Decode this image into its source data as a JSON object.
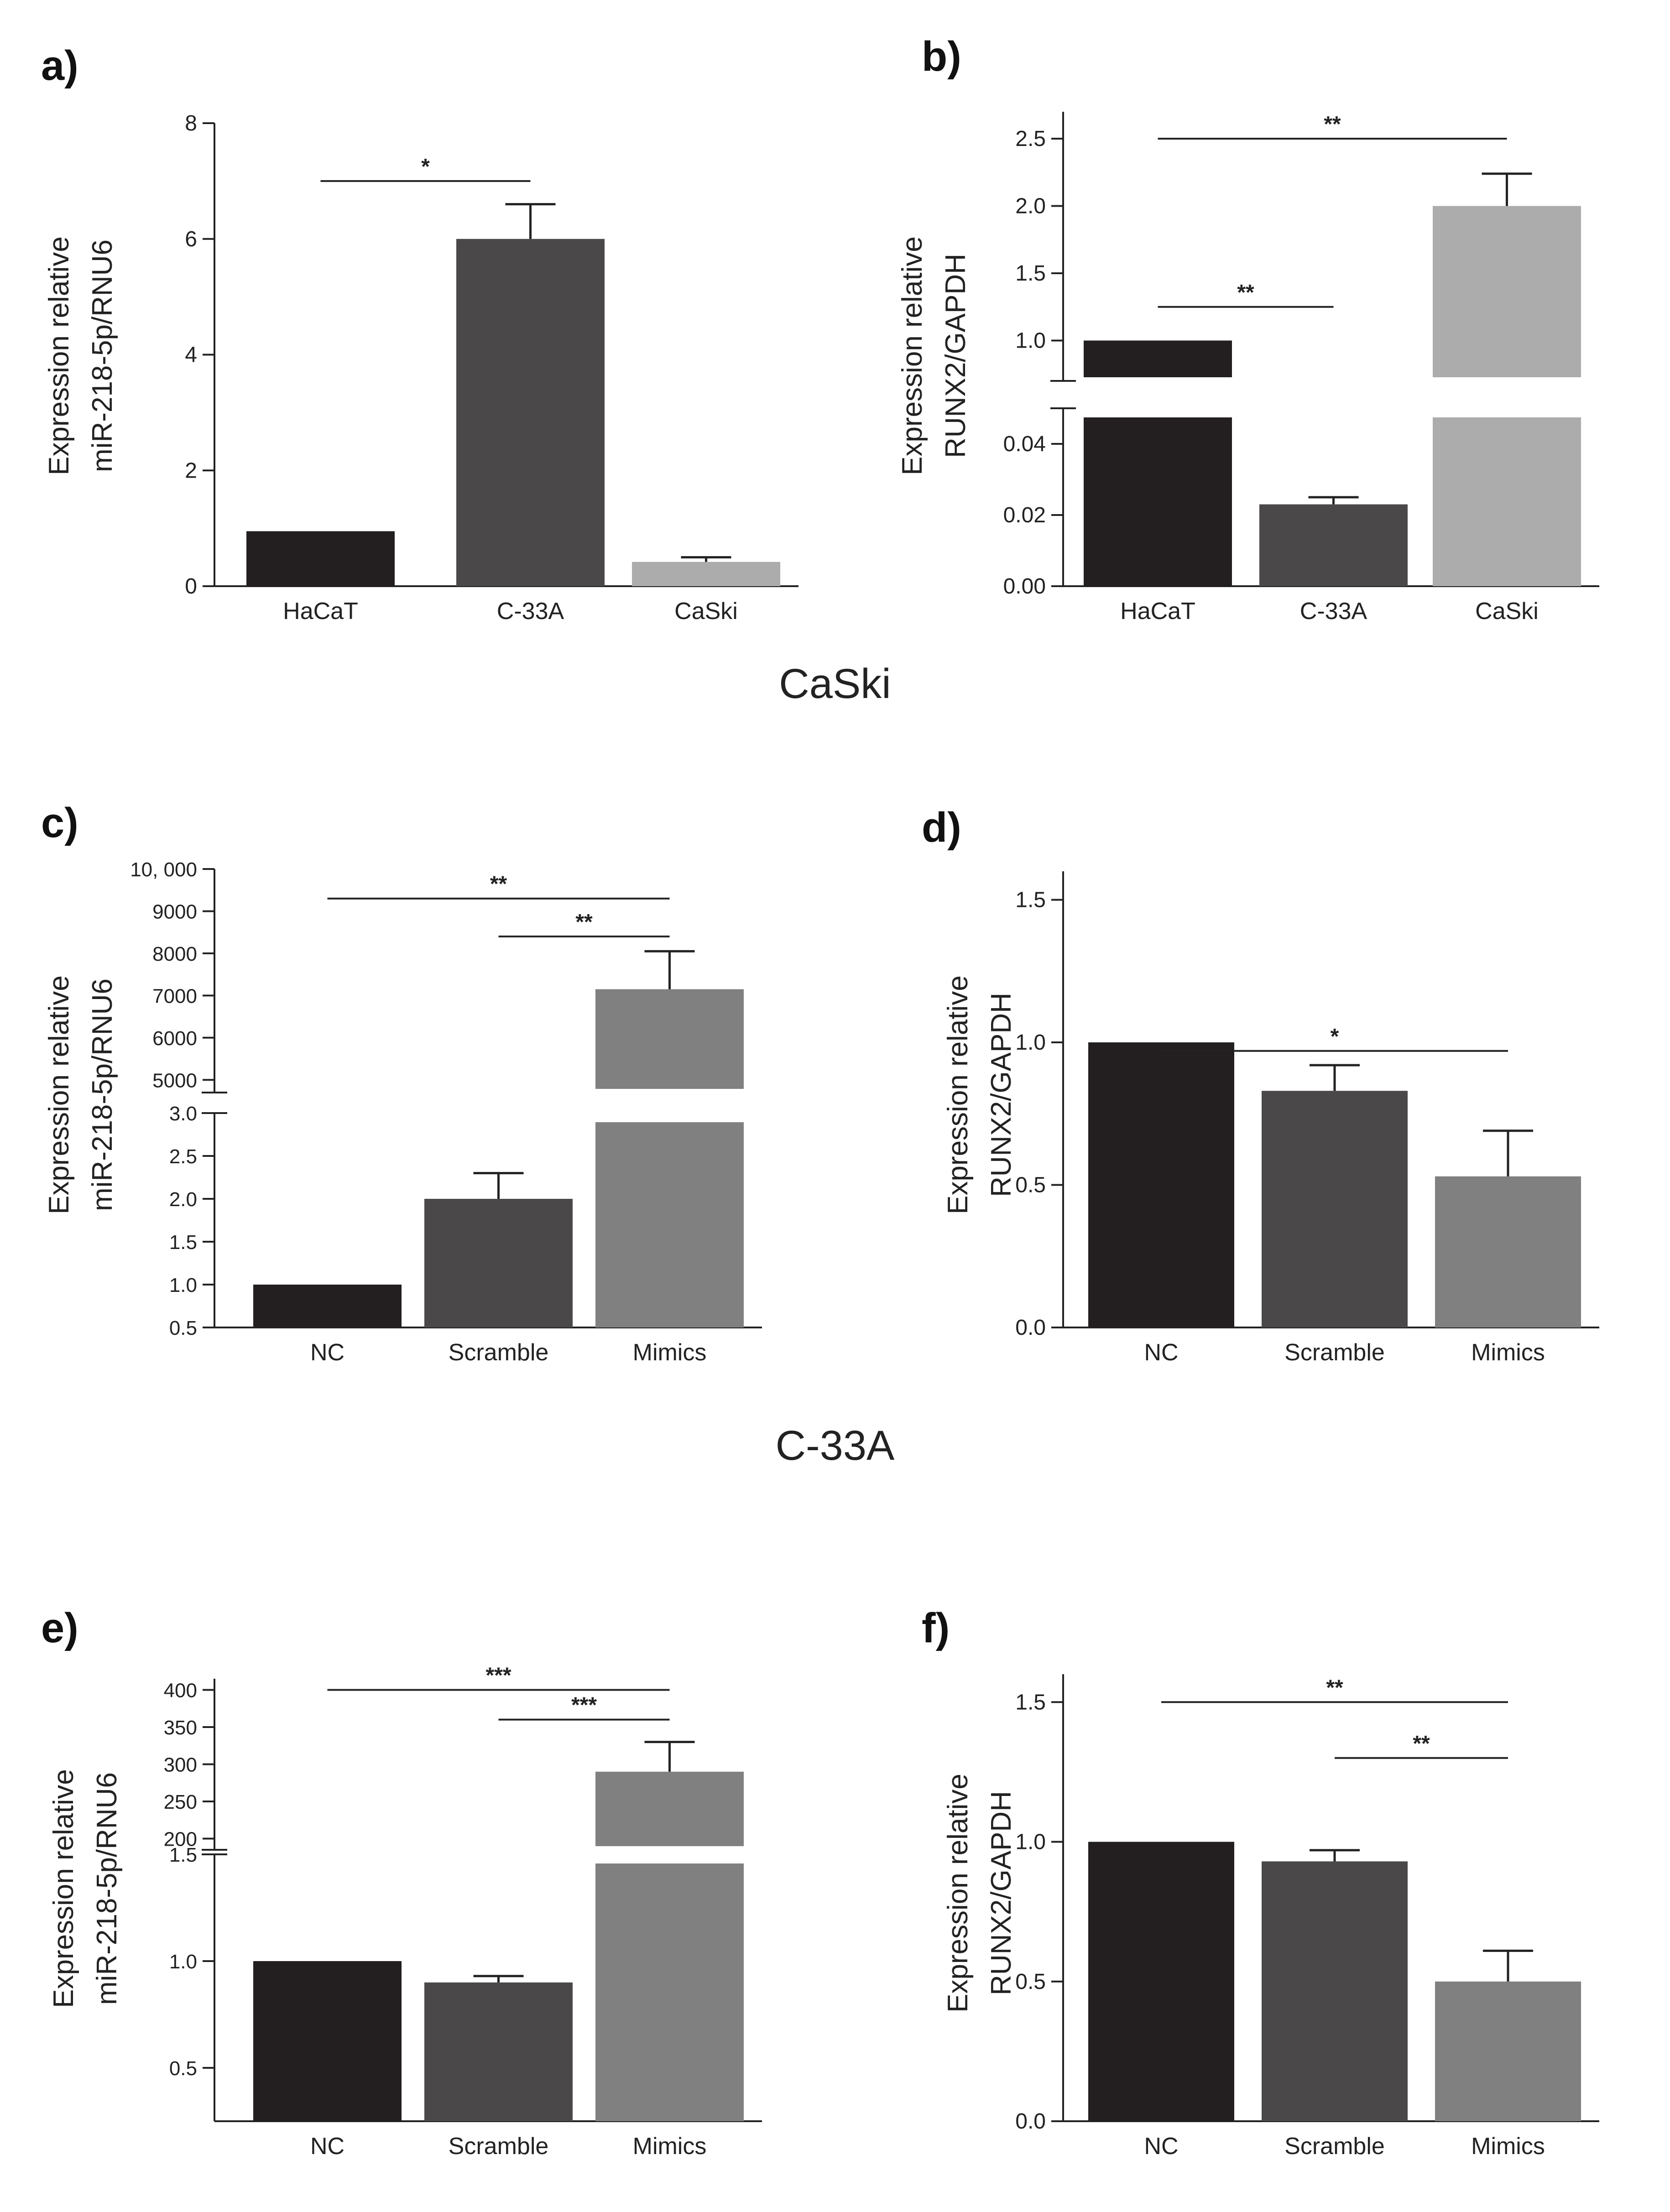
{
  "section_labels": {
    "caski": "CaSki",
    "c33a": "C-33A"
  },
  "chart_data": [
    {
      "panel": "a)",
      "type": "bar",
      "ylabel_lines": [
        "Expression relative",
        "miR-218-5p/RNU6"
      ],
      "categories": [
        "HaCaT",
        "C-33A",
        "CaSki"
      ],
      "values": [
        0.95,
        6.0,
        0.42
      ],
      "errors": [
        0,
        0.6,
        0.08
      ],
      "colors": [
        "#231f20",
        "#4a4849",
        "#acacac"
      ],
      "ylim": [
        0,
        8
      ],
      "ticks": [
        {
          "v": 0,
          "label": "0"
        },
        {
          "v": 2,
          "label": "2"
        },
        {
          "v": 4,
          "label": "4"
        },
        {
          "v": 6,
          "label": "6"
        },
        {
          "v": 8,
          "label": "8"
        }
      ],
      "significance": [
        {
          "from": 0,
          "to": 1,
          "label": "*",
          "y": 7.0
        }
      ]
    },
    {
      "panel": "b)",
      "type": "bar",
      "ylabel_lines": [
        "Expression relative",
        "RUNX2/GAPDH"
      ],
      "categories": [
        "HaCaT",
        "C-33A",
        "CaSki"
      ],
      "values": [
        1.0,
        0.023,
        2.0
      ],
      "errors": [
        0,
        0.002,
        0.24
      ],
      "colors": [
        "#231f20",
        "#4a4849",
        "#acacac"
      ],
      "broken_axis": {
        "lower": [
          0,
          0.05
        ],
        "upper": [
          0.7,
          2.7
        ]
      },
      "ticks_lower": [
        {
          "v": 0,
          "label": "0.00"
        },
        {
          "v": 0.02,
          "label": "0.02"
        },
        {
          "v": 0.04,
          "label": "0.04"
        }
      ],
      "ticks_upper": [
        {
          "v": 1.0,
          "label": "1.0"
        },
        {
          "v": 1.5,
          "label": "1.5"
        },
        {
          "v": 2.0,
          "label": "2.0"
        },
        {
          "v": 2.5,
          "label": "2.5"
        }
      ],
      "significance": [
        {
          "from": 0,
          "to": 1,
          "label": "**",
          "y": 1.25
        },
        {
          "from": 0,
          "to": 2,
          "label": "**",
          "y": 2.5
        }
      ]
    },
    {
      "panel": "c)",
      "type": "bar",
      "ylabel_lines": [
        "Expression relative",
        "miR-218-5p/RNU6"
      ],
      "categories": [
        "NC",
        "Scramble",
        "Mimics"
      ],
      "values": [
        1.0,
        2.0,
        7150
      ],
      "errors": [
        0,
        0.3,
        900
      ],
      "colors": [
        "#231f20",
        "#4a4849",
        "#808080"
      ],
      "broken_axis": {
        "lower": [
          0.5,
          3.0
        ],
        "upper": [
          4700,
          10000
        ]
      },
      "ticks_lower": [
        {
          "v": 0.5,
          "label": "0.5"
        },
        {
          "v": 1.0,
          "label": "1.0"
        },
        {
          "v": 1.5,
          "label": "1.5"
        },
        {
          "v": 2.0,
          "label": "2.0"
        },
        {
          "v": 2.5,
          "label": "2.5"
        },
        {
          "v": 3.0,
          "label": "3.0"
        }
      ],
      "ticks_upper": [
        {
          "v": 5000,
          "label": "5000"
        },
        {
          "v": 6000,
          "label": "6000"
        },
        {
          "v": 7000,
          "label": "7000"
        },
        {
          "v": 8000,
          "label": "8000"
        },
        {
          "v": 9000,
          "label": "9000"
        },
        {
          "v": 10000,
          "label": "10, 000"
        }
      ],
      "significance": [
        {
          "from": 0,
          "to": 2,
          "label": "**",
          "y": 9300
        },
        {
          "from": 1,
          "to": 2,
          "label": "**",
          "y": 8400
        }
      ]
    },
    {
      "panel": "d)",
      "type": "bar",
      "ylabel_lines": [
        "Expression relative",
        "RUNX2/GAPDH"
      ],
      "categories": [
        "NC",
        "Scramble",
        "Mimics"
      ],
      "values": [
        1.0,
        0.83,
        0.53
      ],
      "errors": [
        0,
        0.09,
        0.16
      ],
      "colors": [
        "#231f20",
        "#4a4849",
        "#808080"
      ],
      "ylim": [
        0,
        1.6
      ],
      "ticks": [
        {
          "v": 0,
          "label": "0.0"
        },
        {
          "v": 0.5,
          "label": "0.5"
        },
        {
          "v": 1.0,
          "label": "1.0"
        },
        {
          "v": 1.5,
          "label": "1.5"
        }
      ],
      "significance": [
        {
          "from": 0,
          "to": 2,
          "label": "*",
          "y": 0.97
        }
      ]
    },
    {
      "panel": "e)",
      "type": "bar",
      "ylabel_lines": [
        "Expression relative",
        "miR-218-5p/RNU6"
      ],
      "categories": [
        "NC",
        "Scramble",
        "Mimics"
      ],
      "values": [
        1.0,
        0.9,
        290
      ],
      "errors": [
        0,
        0.03,
        40
      ],
      "colors": [
        "#231f20",
        "#4a4849",
        "#808080"
      ],
      "broken_axis": {
        "lower": [
          0.25,
          1.5
        ],
        "upper": [
          185,
          415
        ]
      },
      "ticks_lower": [
        {
          "v": 0.5,
          "label": "0.5"
        },
        {
          "v": 1.0,
          "label": "1.0"
        },
        {
          "v": 1.5,
          "label": "1.5"
        }
      ],
      "ticks_upper": [
        {
          "v": 200,
          "label": "200"
        },
        {
          "v": 250,
          "label": "250"
        },
        {
          "v": 300,
          "label": "300"
        },
        {
          "v": 350,
          "label": "350"
        },
        {
          "v": 400,
          "label": "400"
        }
      ],
      "significance": [
        {
          "from": 0,
          "to": 2,
          "label": "***",
          "y": 400
        },
        {
          "from": 1,
          "to": 2,
          "label": "***",
          "y": 360
        }
      ]
    },
    {
      "panel": "f)",
      "type": "bar",
      "ylabel_lines": [
        "Expression relative",
        "RUNX2/GAPDH"
      ],
      "categories": [
        "NC",
        "Scramble",
        "Mimics"
      ],
      "values": [
        1.0,
        0.93,
        0.5
      ],
      "errors": [
        0,
        0.04,
        0.11
      ],
      "colors": [
        "#231f20",
        "#4a4849",
        "#808080"
      ],
      "ylim": [
        0,
        1.6
      ],
      "ticks": [
        {
          "v": 0,
          "label": "0.0"
        },
        {
          "v": 0.5,
          "label": "0.5"
        },
        {
          "v": 1.0,
          "label": "1.0"
        },
        {
          "v": 1.5,
          "label": "1.5"
        }
      ],
      "significance": [
        {
          "from": 0,
          "to": 2,
          "label": "**",
          "y": 1.5
        },
        {
          "from": 1,
          "to": 2,
          "label": "**",
          "y": 1.3
        }
      ]
    }
  ]
}
